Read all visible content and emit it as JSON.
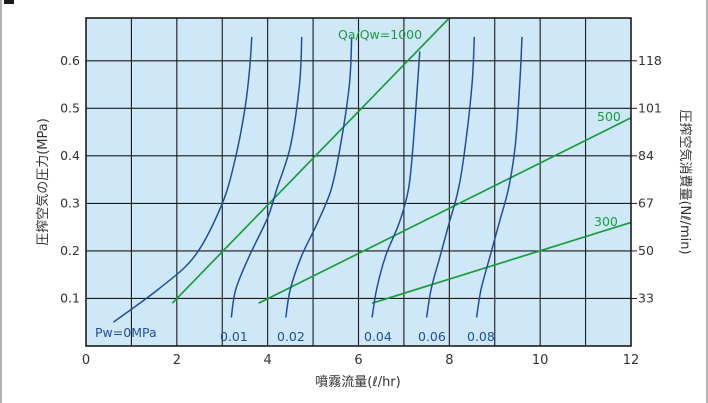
{
  "chart_data": {
    "type": "line",
    "xlabel": "噴霧流量(ℓ/hr)",
    "ylabel_left": "圧搾空気の圧力(MPa)",
    "ylabel_right": "圧搾空気消費量(Nℓ/min)",
    "xlim": [
      0,
      12
    ],
    "ylim": [
      0,
      0.69
    ],
    "x_ticks": [
      "0",
      "2",
      "4",
      "6",
      "8",
      "10",
      "12"
    ],
    "y_ticks_left": [
      "0.1",
      "0.2",
      "0.3",
      "0.4",
      "0.5",
      "0.6"
    ],
    "y_ticks_right": [
      "33",
      "50",
      "67",
      "84",
      "101",
      "118"
    ],
    "grid": true,
    "colors": {
      "plot_background": "#cfe8f7",
      "grid": "#1a1a1a",
      "water_pressure_lines": "#1f4e9c",
      "air_ratio_lines": "#1a9c3e",
      "border": "#1a1a1a"
    },
    "water_pressure_series": [
      {
        "name": "Pw=0MPa",
        "points": [
          [
            0.6,
            0.05
          ],
          [
            1.6,
            0.12
          ],
          [
            2.4,
            0.19
          ],
          [
            3.0,
            0.3
          ],
          [
            3.3,
            0.4
          ],
          [
            3.5,
            0.5
          ],
          [
            3.6,
            0.58
          ],
          [
            3.65,
            0.65
          ]
        ]
      },
      {
        "name": "0.01",
        "points": [
          [
            3.2,
            0.06
          ],
          [
            3.3,
            0.12
          ],
          [
            3.6,
            0.19
          ],
          [
            4.0,
            0.27
          ],
          [
            4.2,
            0.33
          ],
          [
            4.5,
            0.42
          ],
          [
            4.7,
            0.55
          ],
          [
            4.75,
            0.65
          ]
        ]
      },
      {
        "name": "0.02",
        "points": [
          [
            4.4,
            0.06
          ],
          [
            4.5,
            0.12
          ],
          [
            4.75,
            0.19
          ],
          [
            5.1,
            0.26
          ],
          [
            5.4,
            0.33
          ],
          [
            5.6,
            0.42
          ],
          [
            5.8,
            0.55
          ],
          [
            5.85,
            0.65
          ]
        ]
      },
      {
        "name": "0.04",
        "points": [
          [
            6.3,
            0.06
          ],
          [
            6.4,
            0.12
          ],
          [
            6.6,
            0.19
          ],
          [
            6.9,
            0.26
          ],
          [
            7.1,
            0.33
          ],
          [
            7.2,
            0.42
          ],
          [
            7.3,
            0.55
          ],
          [
            7.35,
            0.62
          ]
        ]
      },
      {
        "name": "0.06",
        "points": [
          [
            7.5,
            0.06
          ],
          [
            7.6,
            0.12
          ],
          [
            7.8,
            0.19
          ],
          [
            8.0,
            0.26
          ],
          [
            8.2,
            0.33
          ],
          [
            8.35,
            0.42
          ],
          [
            8.5,
            0.55
          ],
          [
            8.55,
            0.65
          ]
        ]
      },
      {
        "name": "0.08",
        "points": [
          [
            8.6,
            0.06
          ],
          [
            8.7,
            0.12
          ],
          [
            8.9,
            0.19
          ],
          [
            9.1,
            0.26
          ],
          [
            9.3,
            0.33
          ],
          [
            9.45,
            0.42
          ],
          [
            9.55,
            0.55
          ],
          [
            9.6,
            0.65
          ]
        ]
      }
    ],
    "air_ratio_series": [
      {
        "name": "Qa/Qw=1000",
        "points": [
          [
            1.9,
            0.09
          ],
          [
            8.0,
            0.69
          ]
        ]
      },
      {
        "name": "500",
        "points": [
          [
            3.8,
            0.09
          ],
          [
            12.0,
            0.48
          ]
        ]
      },
      {
        "name": "300",
        "points": [
          [
            6.3,
            0.09
          ],
          [
            12.0,
            0.26
          ]
        ]
      }
    ]
  }
}
